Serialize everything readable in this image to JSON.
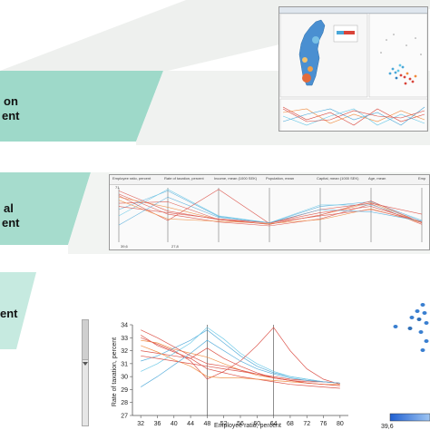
{
  "levels": [
    {
      "label_line1": "on",
      "label_line2": "ent"
    },
    {
      "label_line1": "al",
      "label_line2": "ent"
    },
    {
      "label_line1": "ent",
      "label_line2": ""
    }
  ],
  "colors": {
    "band_top": "#9ed9c9",
    "band_mid": "#a6dccd",
    "band_bottom": "#c6eae0",
    "band_shadow": "#e9ecea",
    "line_warm": "#d9443a",
    "line_orange": "#f08a3c",
    "line_cool": "#4aa7d8",
    "line_teal": "#63c6e6"
  },
  "app_window": {
    "title": "",
    "views": [
      "map-view",
      "scatterplot-view",
      "parallel-coordinates-view"
    ]
  },
  "pcp_table": {
    "columns": [
      "Employee ratio, percent",
      "Rate of taxation, percent",
      "Income, mean (1000 SEK)",
      "Population, mean",
      "Capital, mean (1000 SEK)",
      "Age, mean",
      "Emp"
    ],
    "top_values": [
      "71",
      "",
      "",
      "",
      "",
      "",
      ""
    ],
    "bottom_values": [
      "39,6",
      "27,8",
      "",
      "",
      "",
      "",
      ""
    ]
  },
  "detail_chart": {
    "color_legend_min": "39,6"
  },
  "chart_data": {
    "type": "line",
    "xlabel": "Employee ratio, percent",
    "ylabel": "Rate of taxation, percent",
    "x": [
      32,
      36,
      40,
      44,
      48,
      52,
      56,
      60,
      64,
      68,
      72,
      76,
      80
    ],
    "xlim": [
      30,
      82
    ],
    "ylim": [
      27,
      34
    ],
    "yticks": [
      27,
      28,
      29,
      30,
      31,
      32,
      33,
      34
    ],
    "grid": false,
    "legend": "none",
    "series": [
      {
        "values": [
          33.2,
          32.4,
          31.9,
          31.4,
          30.6,
          30.3,
          30.0,
          29.8,
          29.6,
          29.4,
          29.3,
          29.2,
          29.1
        ]
      },
      {
        "values": [
          32.8,
          32.6,
          32.1,
          31.8,
          31.5,
          31.0,
          30.5,
          30.1,
          29.9,
          29.7,
          29.5,
          29.4,
          29.3
        ]
      },
      {
        "values": [
          32.0,
          31.8,
          31.6,
          31.4,
          32.2,
          31.4,
          30.8,
          30.3,
          29.9,
          29.7,
          29.6,
          29.6,
          29.5
        ]
      },
      {
        "values": [
          31.2,
          31.6,
          32.2,
          32.8,
          33.6,
          32.6,
          31.6,
          30.8,
          30.3,
          30.0,
          29.8,
          29.6,
          29.5
        ]
      },
      {
        "values": [
          30.4,
          31.0,
          31.8,
          32.6,
          33.8,
          32.9,
          31.8,
          31.0,
          30.4,
          30.0,
          29.8,
          29.6,
          29.5
        ]
      },
      {
        "values": [
          33.0,
          32.5,
          32.0,
          31.2,
          29.8,
          30.4,
          31.2,
          32.4,
          33.8,
          32.0,
          30.6,
          29.8,
          29.4
        ]
      },
      {
        "values": [
          32.4,
          31.9,
          31.3,
          30.8,
          30.0,
          29.9,
          29.9,
          29.8,
          29.7,
          29.6,
          29.5,
          29.4,
          29.4
        ]
      },
      {
        "values": [
          31.6,
          31.4,
          31.2,
          31.0,
          30.8,
          30.6,
          30.4,
          30.2,
          30.0,
          29.8,
          29.7,
          29.6,
          29.5
        ]
      },
      {
        "values": [
          29.2,
          30.0,
          30.9,
          31.8,
          32.8,
          32.0,
          31.2,
          30.6,
          30.2,
          29.9,
          29.7,
          29.6,
          29.5
        ]
      },
      {
        "values": [
          33.6,
          33.0,
          32.3,
          31.6,
          31.0,
          30.8,
          30.5,
          30.2,
          29.9,
          29.7,
          29.5,
          29.4,
          29.3
        ]
      }
    ]
  }
}
